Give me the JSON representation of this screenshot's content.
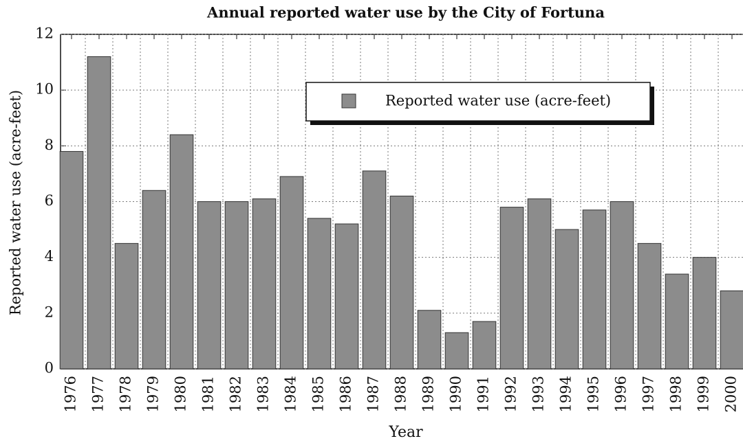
{
  "chart_data": {
    "type": "bar",
    "title": "Annual reported water use by the City of Fortuna",
    "x_label": "Year",
    "y_label": "Reported water use (acre-feet)",
    "categories": [
      "1976",
      "1977",
      "1978",
      "1979",
      "1980",
      "1981",
      "1982",
      "1983",
      "1984",
      "1985",
      "1986",
      "1987",
      "1988",
      "1989",
      "1990",
      "1991",
      "1992",
      "1993",
      "1994",
      "1995",
      "1996",
      "1997",
      "1998",
      "1999",
      "2000"
    ],
    "series": [
      {
        "name": "Reported water use (acre-feet)",
        "color": "#8c8c8c",
        "values": [
          7.8,
          11.2,
          4.5,
          6.4,
          8.4,
          6.0,
          6.0,
          6.1,
          6.9,
          5.4,
          5.2,
          7.1,
          6.2,
          2.1,
          1.3,
          1.7,
          5.8,
          6.1,
          5.0,
          5.7,
          6.0,
          4.5,
          3.4,
          4.0,
          2.8
        ]
      }
    ],
    "ylim": [
      0,
      12
    ],
    "yticks": [
      0,
      2,
      4,
      6,
      8,
      10,
      12
    ],
    "grid": true,
    "legend": "upper right"
  }
}
